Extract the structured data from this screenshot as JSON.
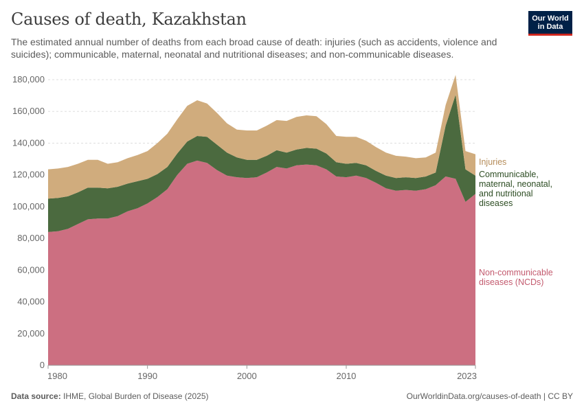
{
  "header": {
    "title": "Causes of death, Kazakhstan",
    "subtitle": "The estimated annual number of deaths from each broad cause of death: injuries (such as accidents, violence and suicides); communicable, maternal, neonatal and nutritional diseases; and non-communicable diseases."
  },
  "logo": {
    "line1": "Our World",
    "line2": "in Data"
  },
  "footer": {
    "source_label": "Data source:",
    "source_text": "IHME, Global Burden of Disease (2025)",
    "url": "OurWorldinData.org/causes-of-death | CC BY"
  },
  "chart_data": {
    "type": "area",
    "stacked": true,
    "title": "Causes of death, Kazakhstan",
    "xlabel": "",
    "ylabel": "",
    "xlim": [
      1980,
      2023
    ],
    "ylim": [
      0,
      180000
    ],
    "yticks": [
      0,
      20000,
      40000,
      60000,
      80000,
      100000,
      120000,
      140000,
      160000,
      180000
    ],
    "ytick_labels": [
      "0",
      "20,000",
      "40,000",
      "60,000",
      "80,000",
      "100,000",
      "120,000",
      "140,000",
      "160,000",
      "180,000"
    ],
    "xticks": [
      1980,
      1990,
      2000,
      2010,
      2023
    ],
    "xtick_labels": [
      "1980",
      "1990",
      "2000",
      "2010",
      "2023"
    ],
    "grid": "horizontal dashed",
    "x": [
      1980,
      1981,
      1982,
      1983,
      1984,
      1985,
      1986,
      1987,
      1988,
      1989,
      1990,
      1991,
      1992,
      1993,
      1994,
      1995,
      1996,
      1997,
      1998,
      1999,
      2000,
      2001,
      2002,
      2003,
      2004,
      2005,
      2006,
      2007,
      2008,
      2009,
      2010,
      2011,
      2012,
      2013,
      2014,
      2015,
      2016,
      2017,
      2018,
      2019,
      2020,
      2021,
      2022,
      2023
    ],
    "series": [
      {
        "name": "Non-communicable diseases (NCDs)",
        "label_lines": [
          "Non-communicable",
          "diseases (NCDs)"
        ],
        "color": "#cc6f81",
        "label_color": "#c35a6e",
        "values": [
          84000,
          84500,
          86000,
          89000,
          92000,
          92500,
          92500,
          94000,
          97000,
          99000,
          102000,
          106000,
          111000,
          120000,
          127000,
          129000,
          127500,
          123000,
          119500,
          118500,
          118000,
          118500,
          121500,
          125000,
          124000,
          126000,
          126500,
          126000,
          123500,
          119000,
          118500,
          119500,
          118000,
          115000,
          111500,
          110000,
          110500,
          110000,
          111000,
          113500,
          119000,
          117500,
          103000,
          108000
        ]
      },
      {
        "name": "Communicable, maternal, neonatal, and nutritional diseases",
        "label_lines": [
          "Communicable,",
          "maternal, neonatal,",
          "and nutritional",
          "diseases"
        ],
        "color": "#4b6a3f",
        "label_color": "#2c4c22",
        "values": [
          21000,
          21000,
          20500,
          20000,
          20000,
          19500,
          19000,
          18500,
          17500,
          17000,
          15500,
          14500,
          14000,
          13500,
          14000,
          15500,
          16500,
          16000,
          14500,
          12500,
          11500,
          11000,
          10500,
          10500,
          10000,
          10000,
          10500,
          10500,
          10000,
          9000,
          8500,
          8000,
          8000,
          7500,
          8000,
          8000,
          8000,
          8000,
          8000,
          8000,
          32000,
          53000,
          20500,
          11500
        ]
      },
      {
        "name": "Injuries",
        "label_lines": [
          "Injuries"
        ],
        "color": "#d0ac7d",
        "label_color": "#b58c59",
        "values": [
          18500,
          18500,
          18500,
          18000,
          17500,
          17500,
          15500,
          15500,
          16000,
          16500,
          17500,
          19500,
          21000,
          21500,
          22500,
          22500,
          21000,
          20000,
          18500,
          17500,
          18500,
          18500,
          19000,
          19000,
          20000,
          20500,
          20500,
          20500,
          18500,
          16500,
          17000,
          16500,
          15500,
          15000,
          14500,
          14000,
          13000,
          12500,
          12000,
          12500,
          13000,
          12500,
          11500,
          13500
        ]
      }
    ]
  }
}
